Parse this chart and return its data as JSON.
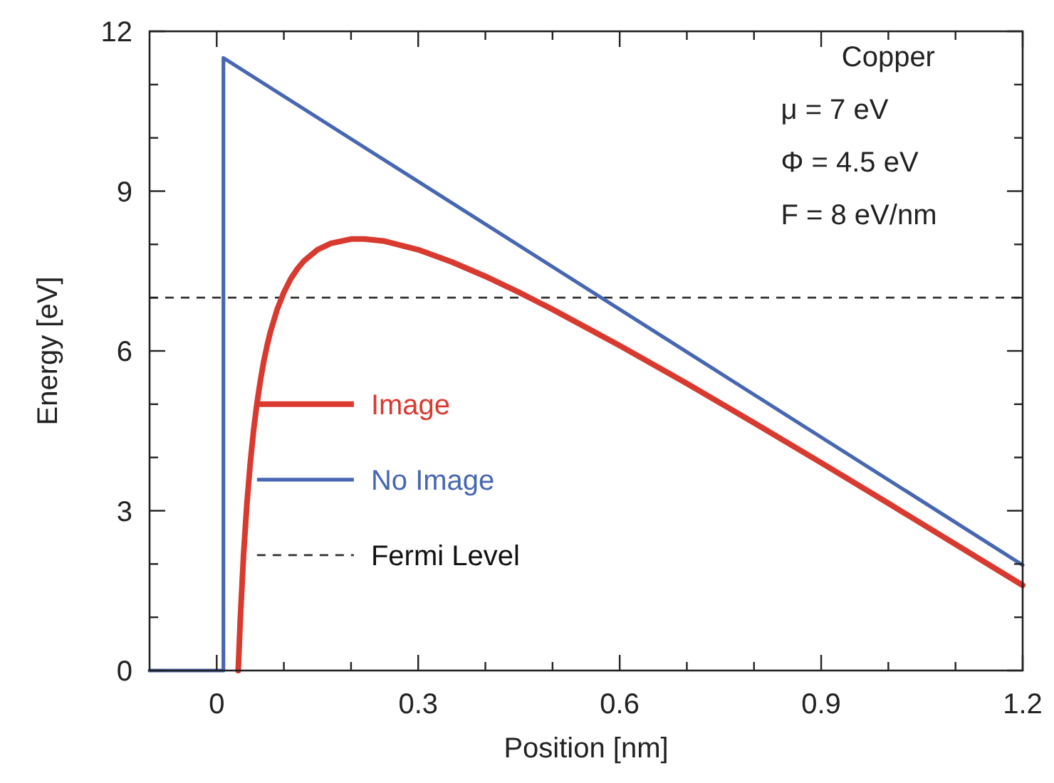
{
  "chart_data": {
    "type": "line",
    "xlabel": "Position [nm]",
    "ylabel": "Energy [eV]",
    "xlim": [
      -0.1,
      1.2
    ],
    "xticks": [
      0,
      {
        "value": 0.1,
        "label": null
      },
      {
        "value": 0.2,
        "label": null
      },
      0.3,
      {
        "value": 0.4,
        "label": null
      },
      {
        "value": 0.5,
        "label": null
      },
      0.6,
      {
        "value": 0.7,
        "label": null
      },
      {
        "value": 0.8,
        "label": null
      },
      0.9,
      {
        "value": 1.0,
        "label": null
      },
      {
        "value": 1.1,
        "label": null
      },
      1.2
    ],
    "ylim": [
      0,
      12
    ],
    "yticks": [
      0,
      {
        "value": 1,
        "label": null
      },
      {
        "value": 2,
        "label": null
      },
      3,
      {
        "value": 4,
        "label": null
      },
      {
        "value": 5,
        "label": null
      },
      6,
      {
        "value": 7,
        "label": null
      },
      {
        "value": 8,
        "label": null
      },
      9,
      {
        "value": 10,
        "label": null
      },
      {
        "value": 11,
        "label": null
      },
      12
    ],
    "grid": false,
    "legend": "left",
    "line_style": "solid",
    "series": [
      {
        "name": "Image",
        "color": "#d93a2f",
        "x": [
          0.032,
          0.035,
          0.04,
          0.045,
          0.05,
          0.055,
          0.06,
          0.065,
          0.07,
          0.075,
          0.08,
          0.09,
          0.1,
          0.11,
          0.12,
          0.13,
          0.15,
          0.17,
          0.2,
          0.22,
          0.25,
          0.3,
          0.35,
          0.4,
          0.45,
          0.5,
          0.6,
          0.7,
          0.8,
          0.9,
          1.0,
          1.2
        ],
        "values": [
          0,
          0.93,
          2.18,
          3.14,
          3.9,
          4.52,
          5.02,
          5.44,
          5.8,
          6.1,
          6.36,
          6.78,
          7.1,
          7.35,
          7.54,
          7.69,
          7.9,
          8.02,
          8.1,
          8.1,
          8.06,
          7.9,
          7.67,
          7.4,
          7.1,
          6.78,
          6.1,
          5.39,
          4.65,
          3.9,
          3.14,
          1.6
        ]
      },
      {
        "name": "No Image",
        "color": "#4767b3",
        "x": [
          -0.1,
          0.01,
          0.01,
          1.2
        ],
        "values": [
          0,
          0,
          11.5,
          1.98
        ]
      }
    ],
    "ref_lines": [
      {
        "axis": "y",
        "value": 7,
        "label": "Fermi Level",
        "color": "#333333",
        "line_style": "dashed"
      }
    ],
    "annotations": [
      "Copper",
      "μ = 7 eV",
      "Φ = 4.5 eV",
      "F = 8 eV/nm"
    ]
  }
}
